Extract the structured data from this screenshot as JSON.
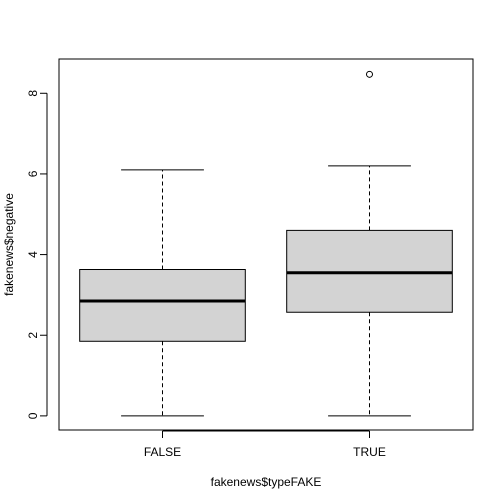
{
  "chart_data": {
    "type": "boxplot",
    "title": "",
    "xlabel": "fakenews$typeFAKE",
    "ylabel": "fakenews$negative",
    "ylim": [
      -0.35,
      8.85
    ],
    "y_ticks": [
      "0",
      "2",
      "4",
      "6",
      "8"
    ],
    "categories": [
      "FALSE",
      "TRUE"
    ],
    "boxes": [
      {
        "category": "FALSE",
        "min": 0,
        "q1": 1.85,
        "median": 2.85,
        "q3": 3.63,
        "max": 6.1,
        "outliers": []
      },
      {
        "category": "TRUE",
        "min": 0,
        "q1": 2.57,
        "median": 3.55,
        "q3": 4.6,
        "max": 6.2,
        "outliers": [
          8.47
        ]
      }
    ],
    "box_fill": "#d3d3d3",
    "grid": false,
    "legend": "none"
  }
}
